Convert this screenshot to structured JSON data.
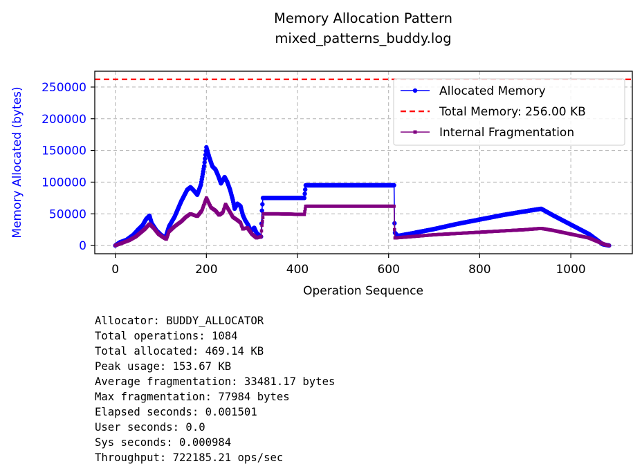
{
  "chart_data": {
    "type": "line",
    "title": "Memory Allocation Pattern",
    "subtitle": "mixed_patterns_buddy.log",
    "xlabel": "Operation Sequence",
    "ylabel": "Memory Allocated (bytes)",
    "xlim": [
      -45,
      1135
    ],
    "ylim": [
      -13000,
      275000
    ],
    "x_ticks": [
      0,
      200,
      400,
      600,
      800,
      1000
    ],
    "y_ticks": [
      0,
      50000,
      100000,
      150000,
      200000,
      250000
    ],
    "grid": true,
    "legend_position": "top-right",
    "hline": {
      "name": "Total Memory: 256.00 KB",
      "value": 262144,
      "color": "#ff0000"
    },
    "series": [
      {
        "name": "Allocated Memory",
        "color": "#0000ff",
        "marker": "circle",
        "points": [
          [
            0,
            0
          ],
          [
            10,
            5000
          ],
          [
            25,
            9000
          ],
          [
            40,
            17000
          ],
          [
            50,
            25000
          ],
          [
            60,
            32000
          ],
          [
            68,
            42000
          ],
          [
            75,
            47000
          ],
          [
            80,
            35000
          ],
          [
            90,
            24000
          ],
          [
            100,
            17000
          ],
          [
            110,
            12000
          ],
          [
            118,
            30000
          ],
          [
            130,
            45000
          ],
          [
            145,
            70000
          ],
          [
            158,
            88000
          ],
          [
            165,
            92000
          ],
          [
            172,
            87000
          ],
          [
            180,
            80000
          ],
          [
            188,
            96000
          ],
          [
            195,
            125000
          ],
          [
            200,
            155000
          ],
          [
            206,
            140000
          ],
          [
            213,
            125000
          ],
          [
            220,
            120000
          ],
          [
            226,
            110000
          ],
          [
            232,
            98000
          ],
          [
            240,
            108000
          ],
          [
            246,
            100000
          ],
          [
            252,
            88000
          ],
          [
            258,
            72000
          ],
          [
            262,
            58000
          ],
          [
            268,
            66000
          ],
          [
            275,
            62000
          ],
          [
            280,
            48000
          ],
          [
            285,
            40000
          ],
          [
            292,
            32000
          ],
          [
            298,
            22000
          ],
          [
            305,
            28000
          ],
          [
            310,
            20000
          ],
          [
            316,
            16000
          ],
          [
            320,
            14000
          ],
          [
            322,
            55000
          ],
          [
            324,
            75000
          ],
          [
            360,
            75000
          ],
          [
            415,
            75000
          ],
          [
            418,
            95000
          ],
          [
            500,
            95000
          ],
          [
            560,
            95000
          ],
          [
            612,
            95000
          ],
          [
            613,
            35000
          ],
          [
            614,
            20000
          ],
          [
            620,
            15000
          ],
          [
            650,
            19000
          ],
          [
            700,
            26000
          ],
          [
            750,
            34000
          ],
          [
            800,
            41000
          ],
          [
            850,
            48000
          ],
          [
            900,
            54000
          ],
          [
            935,
            58000
          ],
          [
            960,
            48000
          ],
          [
            1000,
            33000
          ],
          [
            1040,
            18000
          ],
          [
            1055,
            10000
          ],
          [
            1070,
            2000
          ],
          [
            1084,
            0
          ]
        ]
      },
      {
        "name": "Internal Fragmentation",
        "color": "#800080",
        "marker": "square",
        "points": [
          [
            0,
            0
          ],
          [
            15,
            4000
          ],
          [
            30,
            8000
          ],
          [
            45,
            14000
          ],
          [
            55,
            20000
          ],
          [
            65,
            26000
          ],
          [
            75,
            34000
          ],
          [
            85,
            27000
          ],
          [
            95,
            18000
          ],
          [
            105,
            13000
          ],
          [
            112,
            10000
          ],
          [
            118,
            22000
          ],
          [
            130,
            30000
          ],
          [
            145,
            38000
          ],
          [
            155,
            45000
          ],
          [
            165,
            50000
          ],
          [
            180,
            46000
          ],
          [
            190,
            55000
          ],
          [
            200,
            75000
          ],
          [
            210,
            60000
          ],
          [
            220,
            55000
          ],
          [
            228,
            48000
          ],
          [
            236,
            52000
          ],
          [
            242,
            65000
          ],
          [
            250,
            55000
          ],
          [
            258,
            45000
          ],
          [
            268,
            40000
          ],
          [
            275,
            36000
          ],
          [
            280,
            26000
          ],
          [
            290,
            28000
          ],
          [
            300,
            18000
          ],
          [
            310,
            12000
          ],
          [
            320,
            14000
          ],
          [
            322,
            32000
          ],
          [
            325,
            50000
          ],
          [
            360,
            50000
          ],
          [
            415,
            49000
          ],
          [
            418,
            62000
          ],
          [
            500,
            62000
          ],
          [
            612,
            62000
          ],
          [
            613,
            25000
          ],
          [
            614,
            12000
          ],
          [
            650,
            14000
          ],
          [
            700,
            17000
          ],
          [
            750,
            19000
          ],
          [
            800,
            21000
          ],
          [
            850,
            23000
          ],
          [
            900,
            25000
          ],
          [
            935,
            27000
          ],
          [
            960,
            24000
          ],
          [
            1000,
            18000
          ],
          [
            1040,
            12000
          ],
          [
            1060,
            6000
          ],
          [
            1075,
            1500
          ],
          [
            1084,
            0
          ]
        ]
      }
    ]
  },
  "stats": {
    "lines": [
      "Allocator: BUDDY_ALLOCATOR",
      "Total operations: 1084",
      "Total allocated: 469.14 KB",
      "Peak usage: 153.67 KB",
      "Average fragmentation: 33481.17 bytes",
      "Max fragmentation: 77984 bytes",
      "Elapsed seconds: 0.001501",
      "User seconds: 0.0",
      "Sys seconds: 0.000984",
      "Throughput: 722185.21 ops/sec"
    ]
  }
}
